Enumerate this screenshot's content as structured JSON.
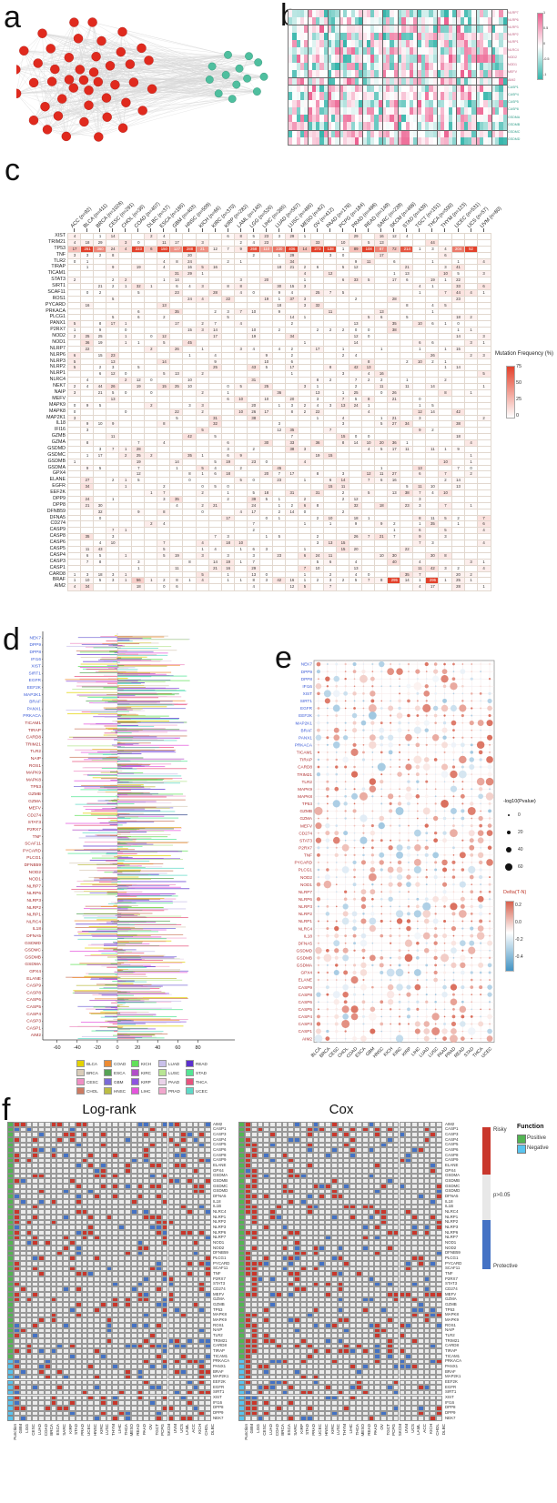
{
  "panel_a": {
    "label": "a",
    "red_node_count": 45,
    "green_node_count": 13,
    "colors": {
      "module_red": "#e02a1e",
      "module_green": "#4fbf9f",
      "edge": "#8f8f8f"
    }
  },
  "panel_b": {
    "label": "b",
    "row_labels": [
      "NLRP7",
      "NLRP6",
      "NLRP3",
      "NLRP2",
      "NLRP1",
      "NLRC4",
      "NOD2",
      "NOD1",
      "MEFV",
      "AIM2",
      "CASP1",
      "CASP4",
      "CASP5",
      "CASP8",
      "GSDMA",
      "GSDMB",
      "GSDMC",
      "GSDMD"
    ],
    "n_cols": 56,
    "legend_ticks": [
      "1",
      "0.5",
      "0",
      "-0.5",
      "-1"
    ],
    "colors": {
      "high": "#ec5f8f",
      "low": "#35b5ab"
    }
  },
  "panel_c": {
    "label": "c",
    "columns": [
      {
        "name": "ACC",
        "n": 92
      },
      {
        "name": "BLCA",
        "n": 411
      },
      {
        "name": "BRCA",
        "n": 1026
      },
      {
        "name": "CESC",
        "n": 291
      },
      {
        "name": "CHOL",
        "n": 36
      },
      {
        "name": "COAD",
        "n": 407
      },
      {
        "name": "DLBC",
        "n": 37
      },
      {
        "name": "ESCA",
        "n": 185
      },
      {
        "name": "GBM",
        "n": 403
      },
      {
        "name": "HNSC",
        "n": 509
      },
      {
        "name": "KICH",
        "n": 66
      },
      {
        "name": "KIRC",
        "n": 370
      },
      {
        "name": "KIRP",
        "n": 282
      },
      {
        "name": "LAML",
        "n": 140
      },
      {
        "name": "LGG",
        "n": 526
      },
      {
        "name": "LIHC",
        "n": 365
      },
      {
        "name": "LUAD",
        "n": 567
      },
      {
        "name": "LUSC",
        "n": 485
      },
      {
        "name": "MESO",
        "n": 82
      },
      {
        "name": "OV",
        "n": 412
      },
      {
        "name": "PAAD",
        "n": 178
      },
      {
        "name": "PCPG",
        "n": 184
      },
      {
        "name": "PRAD",
        "n": 496
      },
      {
        "name": "READ",
        "n": 149
      },
      {
        "name": "SARC",
        "n": 239
      },
      {
        "name": "SKCM",
        "n": 468
      },
      {
        "name": "STAD",
        "n": 439
      },
      {
        "name": "TGCT",
        "n": 151
      },
      {
        "name": "THCA",
        "n": 500
      },
      {
        "name": "THYM",
        "n": 123
      },
      {
        "name": "UCEC",
        "n": 531
      },
      {
        "name": "UCS",
        "n": 57
      },
      {
        "name": "UVM",
        "n": 80
      }
    ],
    "genes": [
      "XIST",
      "TRIM21",
      "TP53",
      "TNF",
      "TLR2",
      "TIRAP",
      "TICAM1",
      "STAT3",
      "SIRT1",
      "SCAF11",
      "ROS1",
      "PYCARD",
      "PRKACA",
      "PLCG1",
      "PANX1",
      "P2RX7",
      "NOD2",
      "NOD1",
      "NLRP7",
      "NLRP6",
      "NLRP3",
      "NLRP2",
      "NLRP1",
      "NLRC4",
      "NEK7",
      "NAIP",
      "MEFV",
      "MAPK9",
      "MAPK8",
      "MAP2K1",
      "IL18",
      "IFI16",
      "GZMB",
      "GZMA",
      "GSDMD",
      "GSDMC",
      "GSDMB",
      "GSDMA",
      "GPX4",
      "ELANE",
      "EGFR",
      "EEF2K",
      "DPP9",
      "DPP8",
      "DFNB59",
      "DFNA5",
      "CD274",
      "CASP9",
      "CASP8",
      "CASP6",
      "CASP5",
      "CASP4",
      "CASP3",
      "CASP1",
      "CARD8",
      "BRAF",
      "AIM2"
    ],
    "known_rows": {
      "TP53": [
        17,
        261,
        360,
        24,
        4,
        223,
        6,
        150,
        127,
        288,
        21,
        12,
        7,
        9,
        268,
        110,
        230,
        406,
        14,
        273,
        138,
        1,
        89,
        108,
        87,
        72,
        214,
        1,
        3,
        4,
        204,
        52,
        null
      ],
      "BRAF": [
        1,
        10,
        5,
        3,
        1,
        56,
        1,
        2,
        8,
        1,
        4,
        null,
        1,
        1,
        8,
        3,
        42,
        16,
        1,
        2,
        3,
        2,
        5,
        7,
        8,
        295,
        14,
        1,
        296,
        1,
        25,
        1,
        null
      ]
    },
    "legend": {
      "title": "Mutation Frequency (%)",
      "ticks": [
        "75",
        "50",
        "25",
        "0"
      ],
      "high_color": "#e3412b"
    }
  },
  "panel_d": {
    "label": "d",
    "genes": [
      "NEK7",
      "DPP9",
      "DPP8",
      "IFI16",
      "XIST",
      "SIRT1",
      "EGFR",
      "EEF2K",
      "MAP2K1",
      "BRAF",
      "PANX1",
      "PRKACA",
      "TICAM1",
      "TIRAP",
      "CARD8",
      "TRIM21",
      "TLR2",
      "NAIP",
      "ROS1",
      "MAPK9",
      "MAPK8",
      "TP53",
      "GZMB",
      "GZMA",
      "MEFV",
      "CD274",
      "STAT3",
      "P2RX7",
      "TNF",
      "SCAF11",
      "PYCARD",
      "PLCG1",
      "DFNB59",
      "NOD2",
      "NOD1",
      "NLRP7",
      "NLRP6",
      "NLRP3",
      "NLRP2",
      "NLRP1",
      "NLRC4",
      "IL18",
      "DFNA5",
      "GSDMD",
      "GSDMC",
      "GSDMB",
      "GSDMA",
      "GPX4",
      "ELANE",
      "CASP9",
      "CASP8",
      "CASP6",
      "CASP5",
      "CASP4",
      "CASP3",
      "CASP1",
      "AIM2"
    ],
    "blue_label_count": 12,
    "x_ticks": [
      "-60",
      "-40",
      "-20",
      "0",
      "20",
      "40",
      "60",
      "80"
    ],
    "legend": [
      {
        "name": "BLCA",
        "color": "#e3d200"
      },
      {
        "name": "BRCA",
        "color": "#d9cdb9"
      },
      {
        "name": "CESC",
        "color": "#ef8fc4"
      },
      {
        "name": "CHOL",
        "color": "#cd7b62"
      },
      {
        "name": "COAD",
        "color": "#ec8b33"
      },
      {
        "name": "ESCA",
        "color": "#56a255"
      },
      {
        "name": "GBM",
        "color": "#7a6bd6"
      },
      {
        "name": "HNSC",
        "color": "#bcbd45"
      },
      {
        "name": "KICH",
        "color": "#62e159"
      },
      {
        "name": "KIRC",
        "color": "#b14fc8"
      },
      {
        "name": "KIRP",
        "color": "#8d55e0"
      },
      {
        "name": "LIHC",
        "color": "#e455dc"
      },
      {
        "name": "LUAD",
        "color": "#c9c0ea"
      },
      {
        "name": "LUSC",
        "color": "#b8e593"
      },
      {
        "name": "PAAD",
        "color": "#ead3e9"
      },
      {
        "name": "PRAD",
        "color": "#f2a7cd"
      },
      {
        "name": "READ",
        "color": "#5b30ce"
      },
      {
        "name": "STAD",
        "color": "#53e594"
      },
      {
        "name": "THCA",
        "color": "#e8537e"
      },
      {
        "name": "UCEC",
        "color": "#5fd9c7"
      }
    ]
  },
  "panel_e": {
    "label": "e",
    "genes": [
      "NEK7",
      "DPP9",
      "DPP8",
      "IFI16",
      "XIST",
      "SIRT1",
      "EGFR",
      "EEF2K",
      "MAP2K1",
      "BRAF",
      "PANX1",
      "PRKACA",
      "TICAM1",
      "TIRAP",
      "CARD8",
      "TRIM21",
      "TLR2",
      "MAPK9",
      "MAPK8",
      "TP53",
      "GZMB",
      "GZMA",
      "MEFV",
      "CD274",
      "STAT3",
      "P2RX7",
      "TNF",
      "PYCARD",
      "PLCG1",
      "NOD2",
      "NOD1",
      "NLRP7",
      "NLRP6",
      "NLRP3",
      "NLRP2",
      "NLRP1",
      "NLRC4",
      "IL18",
      "DFNA5",
      "GSDMD",
      "GSDMB",
      "GSDMA",
      "GPX4",
      "ELANE",
      "CASP9",
      "CASP8",
      "CASP6",
      "CASP5",
      "CASP4",
      "CASP3",
      "CASP1",
      "AIM2"
    ],
    "blue_label_count": 12,
    "cancers": [
      "BLCA",
      "BRCA",
      "CESC",
      "CHOL",
      "COAD",
      "ESCA",
      "GBM",
      "HNSC",
      "KICH",
      "KIRC",
      "KIRP",
      "LIHC",
      "LUAD",
      "LUSC",
      "PAAD",
      "PRAD",
      "READ",
      "STAD",
      "THCA",
      "UCEC"
    ],
    "size_legend": {
      "title": "-log10(Pvalue)",
      "values": [
        "0",
        "20",
        "40",
        "60"
      ]
    },
    "color_legend": {
      "title": "Delta(T-N)",
      "ticks": [
        "0.2",
        "0.0",
        "-0.2",
        "-0.4"
      ],
      "high": "#d6604d",
      "low": "#4393c3"
    }
  },
  "panel_f": {
    "label": "f",
    "titles": {
      "left": "Log-rank",
      "right": "Cox"
    },
    "genes": [
      "AIM2",
      "CASP1",
      "CASP3",
      "CASP4",
      "CASP5",
      "CASP6",
      "CASP8",
      "CASP9",
      "ELANE",
      "GPX4",
      "GSDMA",
      "GSDMB",
      "GSDMC",
      "GSDMD",
      "DFNA5",
      "IL18",
      "IL1B",
      "NLRC4",
      "NLRP1",
      "NLRP2",
      "NLRP3",
      "NLRP6",
      "NLRP7",
      "NOD1",
      "NOD2",
      "DFNB59",
      "PLCG1",
      "PYCARD",
      "SCAF11",
      "TNF",
      "P2RX7",
      "STAT3",
      "CD274",
      "MEFV",
      "GZMA",
      "GZMB",
      "TP53",
      "MAPK8",
      "MAPK9",
      "ROS1",
      "NAIP",
      "TLR2",
      "TRIM21",
      "CARD8",
      "TIRAP",
      "TICAM1",
      "PRKACA",
      "PANX1",
      "BRAF",
      "MAP2K1",
      "EEF2K",
      "EGFR",
      "SIRT1",
      "XIST",
      "IFI16",
      "DPP8",
      "DPP9",
      "NEK7"
    ],
    "positive_row_count": 46,
    "cancers": [
      "GBM",
      "LGG",
      "CESC",
      "LUAD",
      "COAD",
      "BRCA",
      "ESCA",
      "SARC",
      "KIRP",
      "STAD",
      "PRAD",
      "UCEC",
      "HNSC",
      "KIRC",
      "LUSC",
      "THYM",
      "LIHC",
      "THCA",
      "MESO",
      "READ",
      "PAAD",
      "OV",
      "TGCT",
      "PCPG",
      "SKCM",
      "UVM",
      "UCS",
      "LAML",
      "ACC",
      "KICH",
      "CHOL",
      "DLBC"
    ],
    "function_label": "Function",
    "legend": {
      "risky_label": "Risky",
      "ns_label": "p>0.05",
      "protective_label": "Protective",
      "function_title": "Function",
      "positive_label": "Positive",
      "negative_label": "Negative"
    },
    "colors": {
      "risky": "#c9372c",
      "protective": "#4472c4",
      "empty": "#ebebeb",
      "positive": "#53b553",
      "negative": "#59c4ef"
    }
  }
}
